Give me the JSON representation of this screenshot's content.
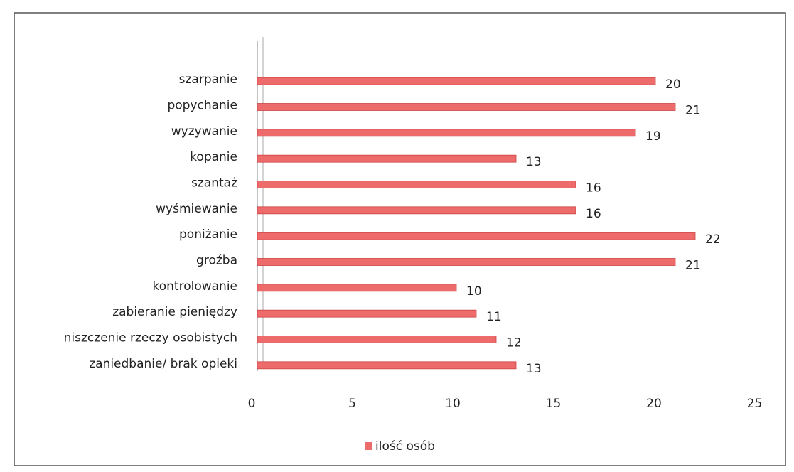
{
  "chart_data": {
    "type": "barh",
    "categories": [
      "szarpanie",
      "popychanie",
      "wyzywanie",
      "kopanie",
      "szantaż",
      "wyśmiewanie",
      "poniżanie",
      "groźba",
      "kontrolowanie",
      "zabieranie pieniędzy",
      "niszczenie rzeczy osobistych",
      "zaniedbanie/ brak opieki"
    ],
    "series": [
      {
        "name": "ilość osób",
        "color": "#ee6b6b",
        "values": [
          20,
          21,
          19,
          13,
          16,
          16,
          22,
          21,
          10,
          11,
          12,
          13
        ]
      }
    ],
    "xlim": [
      0,
      25
    ],
    "xticks": [
      0,
      5,
      10,
      15,
      20,
      25
    ],
    "grid": false,
    "legend": "bottom"
  }
}
